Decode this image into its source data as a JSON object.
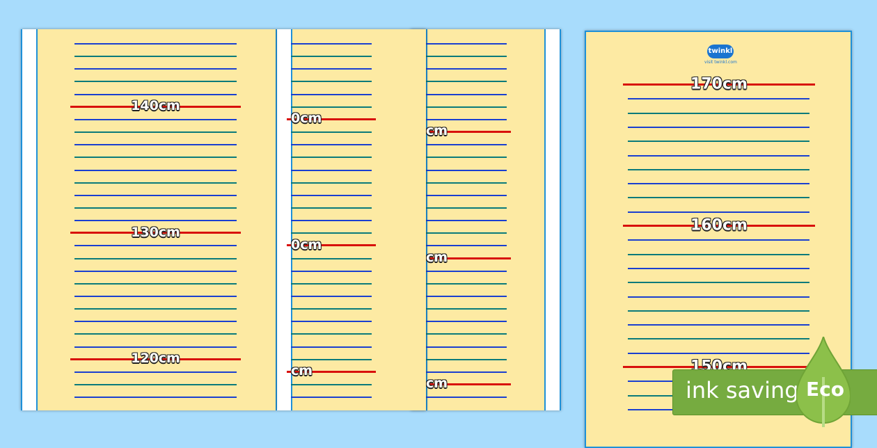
{
  "pages": [
    {
      "labels": [
        "140cm",
        "130cm",
        "120cm"
      ]
    },
    {
      "labels": [
        "0cm",
        "0cm",
        "cm"
      ]
    },
    {
      "labels": [
        "cm",
        "cm",
        "cm"
      ]
    }
  ],
  "main_page": {
    "logo": "twinkl",
    "logo_sub": "visit twinkl.com",
    "labels": [
      "170cm",
      "160cm",
      "150cm"
    ]
  },
  "badge": {
    "text": "ink saving",
    "eco": "Eco"
  },
  "colors": {
    "paper": "#fdeaa3",
    "red": "#d8100c",
    "blue": "#1a3fd0",
    "teal": "#0a7a7a",
    "eco_green": "#76ab40"
  }
}
